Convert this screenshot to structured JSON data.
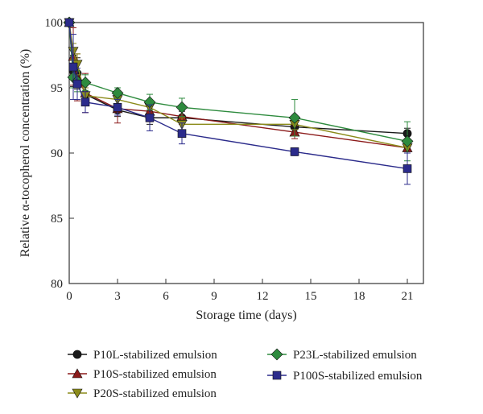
{
  "chart_data": {
    "type": "line",
    "xlabel": "Storage time (days)",
    "ylabel": "Relative α-tocopherol concentration (%)",
    "xlim": [
      0,
      22
    ],
    "ylim": [
      80,
      100
    ],
    "xticks": [
      0,
      3,
      6,
      9,
      12,
      15,
      18,
      21
    ],
    "yticks": [
      80,
      85,
      90,
      95,
      100
    ],
    "grid": false,
    "legend_position": "bottom",
    "series": [
      {
        "name": "P10L-stabilized emulsion",
        "color": "#1a1a1a",
        "marker": "circle",
        "x": [
          0,
          0.25,
          0.5,
          1,
          3,
          5,
          7,
          14,
          21
        ],
        "y": [
          100,
          96.3,
          96.1,
          94.5,
          93.3,
          92.7,
          92.7,
          92.0,
          91.5
        ],
        "err": [
          0,
          1.2,
          1.2,
          0.8,
          0.5,
          0.5,
          0.5,
          0.4,
          0.4
        ]
      },
      {
        "name": "P10S-stabilized emulsion",
        "color": "#8b1a1a",
        "marker": "triangle-up",
        "x": [
          0,
          0.25,
          0.5,
          1,
          3,
          5,
          7,
          14,
          21
        ],
        "y": [
          100,
          97.4,
          95.8,
          94.6,
          93.4,
          93.2,
          92.8,
          91.6,
          90.4
        ],
        "err": [
          0,
          2.2,
          1.8,
          1.5,
          1.1,
          0.8,
          0.6,
          0.5,
          0.4
        ]
      },
      {
        "name": "P20S-stabilized emulsion",
        "color": "#8b8b1a",
        "marker": "triangle-down",
        "x": [
          0,
          0.25,
          0.5,
          1,
          3,
          5,
          7,
          14,
          21
        ],
        "y": [
          100,
          97.8,
          96.8,
          94.4,
          94.1,
          93.5,
          92.2,
          92.2,
          90.4
        ],
        "err": [
          0,
          0.6,
          0.8,
          0.6,
          0.5,
          0.5,
          0.5,
          0.4,
          0.4
        ]
      },
      {
        "name": "P23L-stabilized emulsion",
        "color": "#2e8b3e",
        "marker": "diamond",
        "x": [
          0,
          0.25,
          0.5,
          1,
          3,
          5,
          7,
          14,
          21
        ],
        "y": [
          100,
          95.8,
          95.5,
          95.4,
          94.6,
          93.9,
          93.5,
          92.7,
          90.9
        ],
        "err": [
          0,
          0.8,
          0.8,
          0.6,
          0.4,
          0.6,
          0.7,
          1.4,
          1.5
        ]
      },
      {
        "name": "P100S-stabilized emulsion",
        "color": "#2b2b8b",
        "marker": "square",
        "x": [
          0,
          0.25,
          0.5,
          1,
          3,
          5,
          7,
          14,
          21
        ],
        "y": [
          100,
          96.6,
          95.3,
          93.9,
          93.5,
          92.7,
          91.5,
          90.1,
          88.8
        ],
        "err": [
          0,
          2.5,
          1.2,
          0.8,
          0.6,
          1.0,
          0.8,
          0.3,
          1.2
        ]
      }
    ]
  }
}
